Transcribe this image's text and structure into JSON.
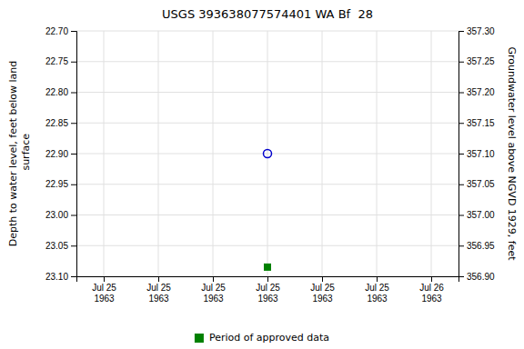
{
  "chart_data": {
    "type": "scatter",
    "title": "USGS 393638077574401 WA Bf  28",
    "y_label": "Depth to water level, feet below land\n surface",
    "y2_label": "Groundwater level above NGVD 1929, feet",
    "categories": [
      "Jul 25\n1963",
      "Jul 25\n1963",
      "Jul 25\n1963",
      "Jul 25\n1963",
      "Jul 25\n1963",
      "Jul 25\n1963",
      "Jul 26\n1963"
    ],
    "ylim": [
      23.1,
      22.7
    ],
    "yticks": [
      {
        "value": 22.7,
        "label": "22.70"
      },
      22.75,
      {
        "value": 22.8,
        "label": "22.80"
      },
      22.85,
      {
        "value": 22.9,
        "label": "22.90"
      },
      22.95,
      {
        "value": 23.0,
        "label": "23.00"
      },
      23.05,
      {
        "value": 23.1,
        "label": "23.10"
      }
    ],
    "y2lim": [
      356.9,
      357.3
    ],
    "y2ticks": [
      {
        "value": 357.3,
        "label": "357.30"
      },
      357.25,
      {
        "value": 357.2,
        "label": "357.20"
      },
      357.15,
      {
        "value": 357.1,
        "label": "357.10"
      },
      357.05,
      {
        "value": 357.0,
        "label": "357.00"
      },
      356.95,
      {
        "value": 356.9,
        "label": "356.90"
      }
    ],
    "grid": true,
    "legend": "bottom",
    "series": [
      {
        "color": "#0000cc",
        "marker": "open-circle",
        "values": [
          null,
          null,
          null,
          22.9,
          null,
          null,
          null
        ]
      },
      {
        "name": "Period of approved data",
        "color": "#008000",
        "marker": "square",
        "values": [
          null,
          null,
          null,
          23.085,
          null,
          null,
          null
        ]
      }
    ]
  }
}
